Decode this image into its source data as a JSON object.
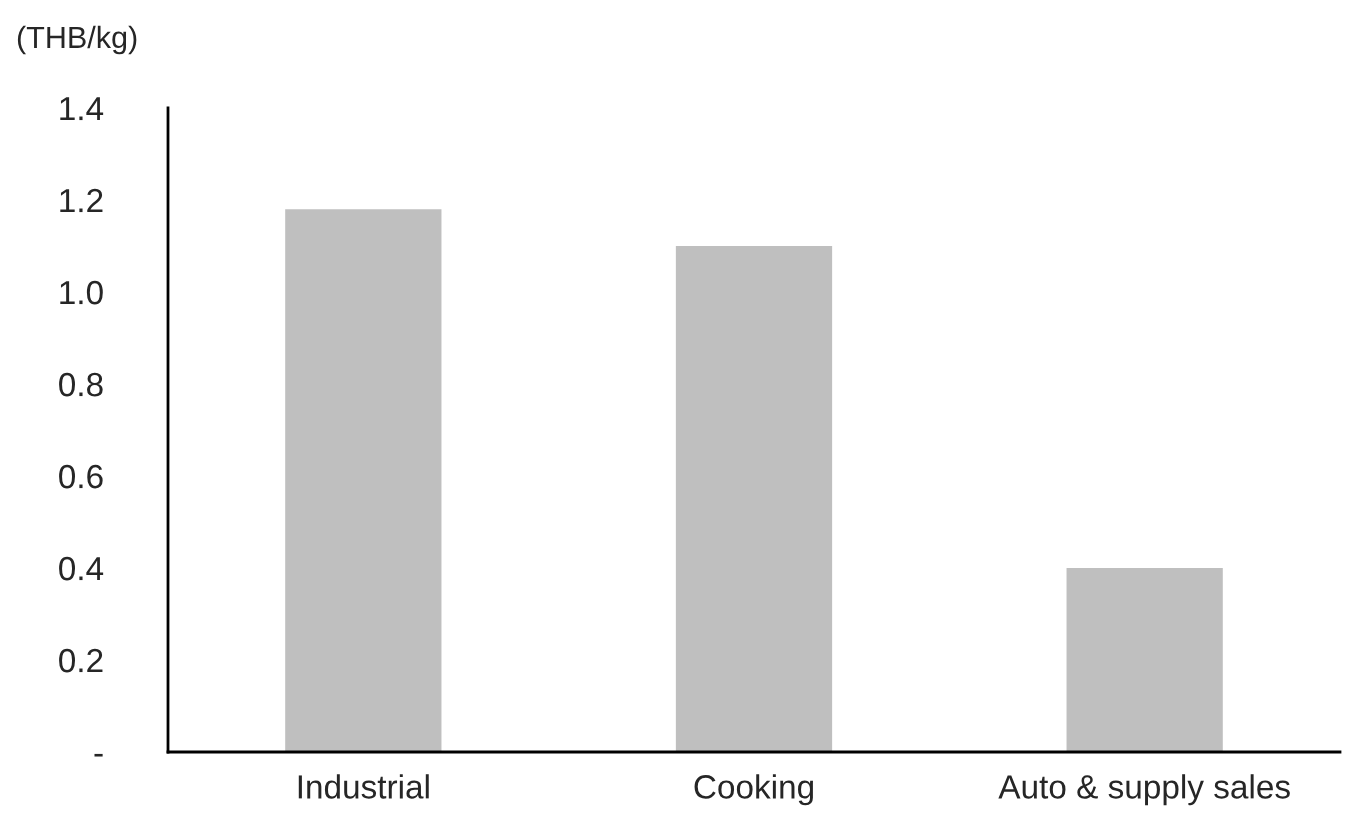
{
  "chart_data": {
    "type": "bar",
    "ylabel": "(THB/kg)",
    "categories": [
      "Industrial",
      "Cooking",
      "Auto & supply sales"
    ],
    "values": [
      1.18,
      1.1,
      0.4
    ],
    "color": "#bfbfbf",
    "ylim": [
      0,
      1.4
    ],
    "yticks": [
      {
        "value": 0,
        "label": "-"
      },
      0.2,
      0.4,
      0.6,
      0.8,
      {
        "value": 1.0,
        "label": "1.0"
      },
      1.2,
      1.4
    ],
    "grid": false,
    "legend": false
  }
}
